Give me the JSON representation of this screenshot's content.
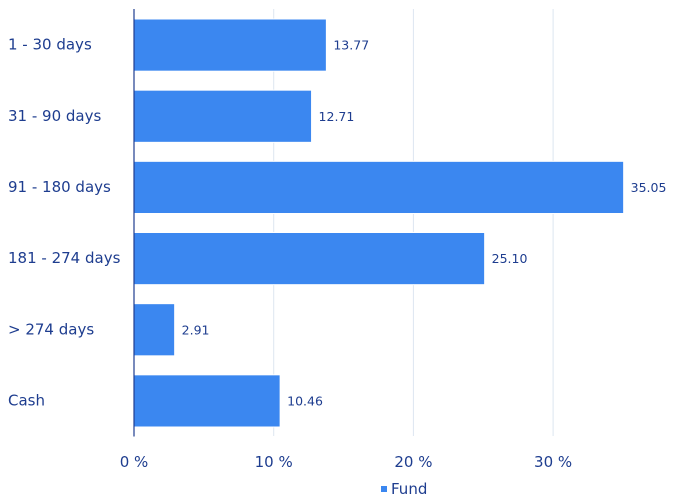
{
  "chart_data": {
    "type": "bar",
    "orientation": "horizontal",
    "categories": [
      "1 - 30 days",
      "31 - 90 days",
      "91 - 180 days",
      "181 - 274 days",
      "> 274 days",
      "Cash"
    ],
    "series": [
      {
        "name": "Fund",
        "values": [
          13.77,
          12.71,
          35.05,
          25.1,
          2.91,
          10.46
        ],
        "labels": [
          "13.77",
          "12.71",
          "35.05",
          "25.10",
          "2.91",
          "10.46"
        ]
      }
    ],
    "x_ticks": [
      {
        "value": 0,
        "label": "0 %"
      },
      {
        "value": 10,
        "label": "10 %"
      },
      {
        "value": 20,
        "label": "20 %"
      },
      {
        "value": 30,
        "label": "30 %"
      }
    ],
    "xlim": [
      0,
      35.7
    ],
    "title": "",
    "xlabel": "",
    "ylabel": "",
    "grid": true,
    "legend_position": "bottom-center"
  },
  "colors": {
    "bar": "#3b87f0",
    "bar_edge": "#ffffff",
    "text": "#1e3d8f",
    "axis": "#1e3d8f",
    "grid": "#dde6f0"
  }
}
